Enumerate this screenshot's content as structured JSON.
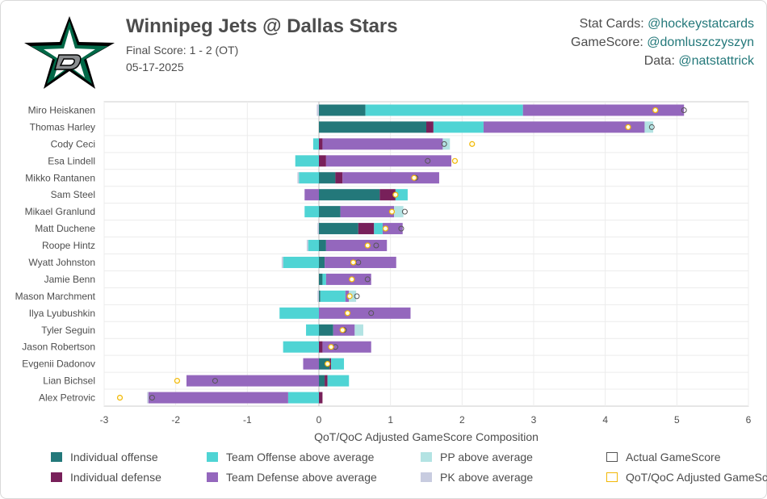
{
  "header": {
    "title": "Winnipeg Jets @ Dallas Stars",
    "score": "Final Score: 1 - 2 (OT)",
    "date": "05-17-2025"
  },
  "credits": [
    {
      "label": "Stat Cards: ",
      "handle": "@hockeystatcards"
    },
    {
      "label": "GameScore: ",
      "handle": "@domluszczyszyn"
    },
    {
      "label": "Data: ",
      "handle": "@natstattrick"
    }
  ],
  "colors": {
    "individual_offense": "#23787a",
    "individual_defense": "#78205a",
    "team_offense": "#4fd4d4",
    "team_defense": "#9467bd",
    "pp": "#b3e3e3",
    "pk": "#c8cce0",
    "actual_marker": "#555555",
    "adjusted_marker": "#f2b807",
    "logo_green": "#006847"
  },
  "chart_data": {
    "type": "bar",
    "orientation": "horizontal",
    "stacked": true,
    "xlabel": "QoT/QoC Adjusted GameScore Composition",
    "xlim": [
      -3,
      6
    ],
    "xticks": [
      -3,
      -2,
      -1,
      0,
      1,
      2,
      3,
      4,
      5,
      6
    ],
    "grid": true,
    "legend_position": "bottom",
    "categories": [
      "Miro Heiskanen",
      "Thomas Harley",
      "Cody Ceci",
      "Esa Lindell",
      "Mikko Rantanen",
      "Sam Steel",
      "Mikael Granlund",
      "Matt Duchene",
      "Roope Hintz",
      "Wyatt Johnston",
      "Jamie Benn",
      "Mason Marchment",
      "Ilya Lyubushkin",
      "Tyler Seguin",
      "Jason Robertson",
      "Evgenii Dadonov",
      "Lian Bichsel",
      "Alex Petrovic"
    ],
    "series": [
      {
        "name": "Individual offense",
        "key": "individual_offense",
        "values": [
          0.65,
          1.5,
          0,
          0,
          0.23,
          0.85,
          0.3,
          0.55,
          0.1,
          0.08,
          0.05,
          0.02,
          0,
          0.2,
          0,
          0.15,
          0.08,
          0
        ]
      },
      {
        "name": "Individual defense",
        "key": "individual_defense",
        "values": [
          0,
          0.1,
          0.05,
          0.1,
          0.1,
          0.22,
          0,
          0.22,
          0,
          0,
          0,
          0,
          0,
          0,
          0.05,
          0.02,
          0.04,
          0.05
        ]
      },
      {
        "name": "Team Offense above average",
        "key": "team_offense",
        "values": [
          2.2,
          0.7,
          -0.08,
          -0.33,
          -0.28,
          0.17,
          -0.2,
          0.12,
          -0.15,
          -0.5,
          0.05,
          0.35,
          -0.55,
          -0.18,
          -0.5,
          0.18,
          0.3,
          -0.43
        ]
      },
      {
        "name": "Team Defense above average",
        "key": "team_defense",
        "values": [
          2.25,
          2.25,
          1.68,
          1.75,
          1.35,
          -0.2,
          0.75,
          0.28,
          0.85,
          1.0,
          0.63,
          0.05,
          1.28,
          0.3,
          0.68,
          -0.22,
          -1.85,
          -1.95
        ]
      },
      {
        "name": "PP above average",
        "key": "pp",
        "values": [
          0,
          0.12,
          0.1,
          0,
          0,
          0,
          0.13,
          0,
          0,
          0,
          0,
          0.1,
          0,
          0.12,
          0,
          0,
          0,
          0
        ]
      },
      {
        "name": "PK above average",
        "key": "pk",
        "values": [
          -0.03,
          0,
          0,
          0,
          -0.02,
          0,
          0,
          -0.02,
          -0.02,
          -0.02,
          0,
          -0.02,
          0,
          0,
          0,
          0,
          0,
          -0.02
        ]
      }
    ],
    "markers": {
      "actual_gamescore": [
        5.1,
        4.65,
        1.75,
        1.52,
        1.35,
        1.07,
        1.2,
        1.15,
        0.8,
        0.55,
        0.68,
        0.53,
        0.73,
        0.35,
        0.23,
        0.12,
        -1.45,
        -2.33
      ],
      "adjusted_gamescore": [
        4.7,
        4.32,
        2.14,
        1.9,
        1.33,
        1.07,
        1.02,
        0.93,
        0.68,
        0.48,
        0.46,
        0.43,
        0.4,
        0.33,
        0.17,
        0.12,
        -1.98,
        -2.78
      ]
    },
    "legend": [
      {
        "label": "Individual offense",
        "key": "individual_offense",
        "shape": "fill"
      },
      {
        "label": "Team Offense above average",
        "key": "team_offense",
        "shape": "fill"
      },
      {
        "label": "PP above average",
        "key": "pp",
        "shape": "fill"
      },
      {
        "label": "Actual GameScore",
        "key": "actual_marker",
        "shape": "outline"
      },
      {
        "label": "Individual defense",
        "key": "individual_defense",
        "shape": "fill"
      },
      {
        "label": "Team Defense above average",
        "key": "team_defense",
        "shape": "fill"
      },
      {
        "label": "PK above average",
        "key": "pk",
        "shape": "fill"
      },
      {
        "label": "QoT/QoC Adjusted GameScore",
        "key": "adjusted_marker",
        "shape": "outline"
      }
    ]
  }
}
